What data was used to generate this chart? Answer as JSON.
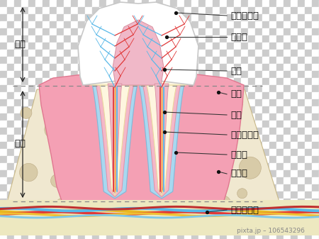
{
  "bg_c1": "#cccccc",
  "bg_c2": "#ffffff",
  "checker_size": 10,
  "enamel_color": "#ffffff",
  "enamel_outline": "#c8c8c8",
  "dentin_color": "#fef6df",
  "dentin_outline": "#e8d898",
  "pulp_color": "#f0b8c8",
  "pulp_outline": "#d890a0",
  "gum_color": "#f4a0b4",
  "gum_outline": "#e07890",
  "cementum_color": "#f4b8c8",
  "pdl_color": "#a8d8f0",
  "pdl_outline": "#80b8d8",
  "bone_color": "#f0e8d0",
  "bone_outline": "#c8b888",
  "bone_spot_color": "#d8cba8",
  "bone_spot_outline": "#bcaa84",
  "labels": [
    "エナメル質",
    "象牙質",
    "歯髄",
    "歯肉",
    "根管",
    "セメント質",
    "歯根膜",
    "歯槽骨",
    "神経・血管"
  ],
  "crown_label": "歯冠",
  "root_label": "歯根",
  "label_fontsize": 9.5,
  "side_fontsize": 9.5,
  "pixta_fontsize": 6.5,
  "figsize": [
    4.5,
    3.37
  ],
  "dpi": 100
}
